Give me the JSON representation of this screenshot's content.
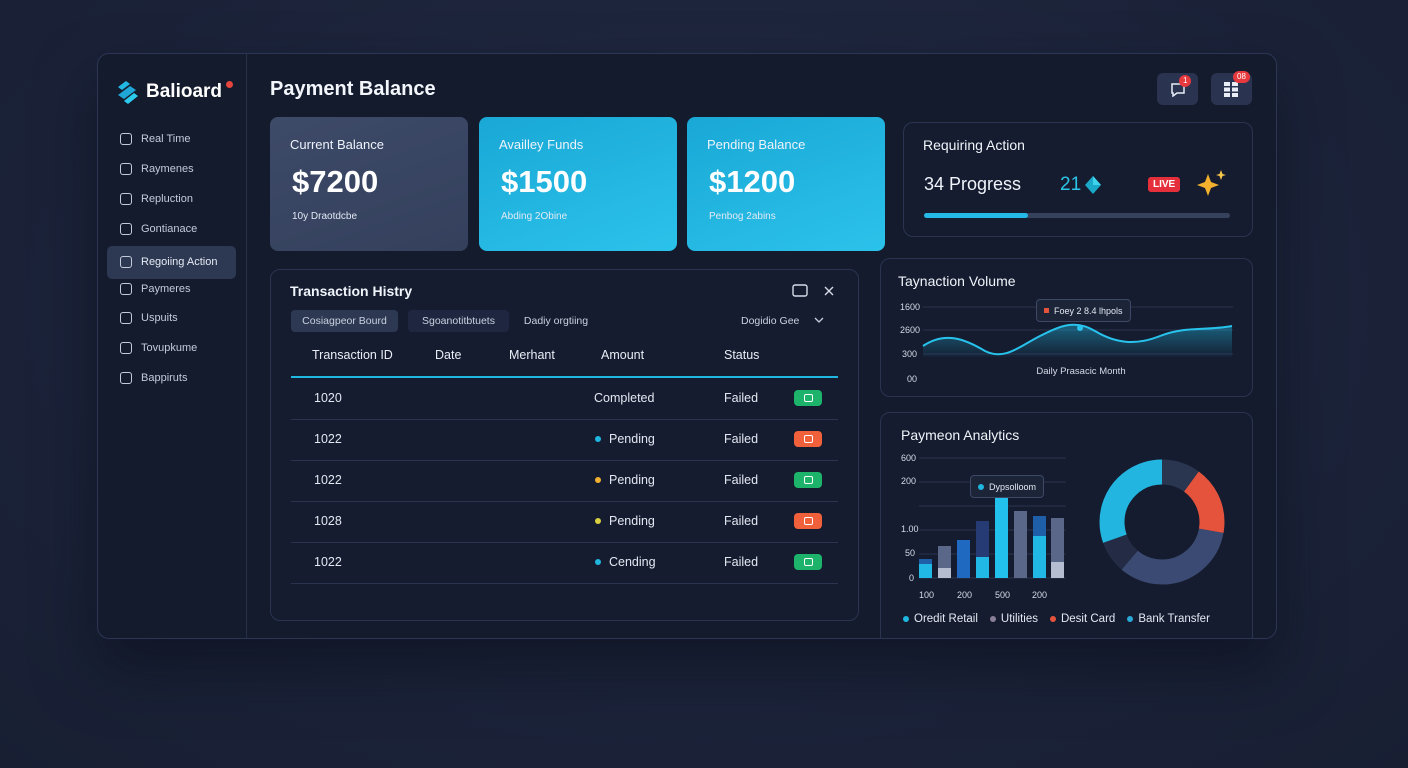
{
  "sidebar": {
    "logo": "Balioard",
    "items": [
      "Real Time",
      "Raymenes",
      "Repluction",
      "Gontianace",
      "Regoiing Action",
      "Paymeres",
      "Uspuits",
      "Tovupkume",
      "Bappiruts"
    ]
  },
  "header": {
    "title": "Payment Balance",
    "badges": [
      "1",
      "08"
    ]
  },
  "cards": [
    {
      "label": "Current Balance",
      "value": "$7200",
      "note": "10y Draotdcbe"
    },
    {
      "label": "Availley Funds",
      "value": "$1500",
      "note": "Abding 2Obine"
    },
    {
      "label": "Pending Balance",
      "value": "$1200",
      "note": "Penbog 2abins"
    }
  ],
  "requiring_action": {
    "title": "Requiring Action",
    "progress": "34 Progress",
    "count": "21",
    "live": "LIVE"
  },
  "transactions": {
    "title": "Transaction Histry",
    "tabs": [
      "Cosiagpeor Bourd",
      "Sgoanotitbtuets",
      "Dadiy orgtiing"
    ],
    "filter": "Dogidio Gee",
    "columns": [
      "Transaction ID",
      "Date",
      "Merhant",
      "Amount",
      "Status"
    ],
    "rows": [
      {
        "id": "1020",
        "state": "Completed",
        "status": "Failed",
        "badge": "#1db36b"
      },
      {
        "id": "1022",
        "state": "Pending",
        "dot": "#1fb6e0",
        "status": "Failed",
        "badge": "#f0603a"
      },
      {
        "id": "1022",
        "state": "Pending",
        "dot": "#f0b030",
        "status": "Failed",
        "badge": "#1db36b"
      },
      {
        "id": "1028",
        "state": "Pending",
        "dot": "#d8d040",
        "status": "Failed",
        "badge": "#f0603a"
      },
      {
        "id": "1022",
        "state": "Cending",
        "dot": "#1fb6e0",
        "status": "Failed",
        "badge": "#1db36b"
      }
    ]
  },
  "volume": {
    "title": "Taynaction Volume",
    "y_labels": [
      "1600",
      "2600",
      "300",
      "00"
    ],
    "tooltip": "Foey 2 8.4 lhpols",
    "caption": "Daily Prasacic Month"
  },
  "analytics": {
    "title": "Paymeon Analytics",
    "y_labels": [
      "600",
      "200",
      "1.00",
      "50",
      "0"
    ],
    "x_labels": [
      "100",
      "200",
      "500",
      "200"
    ],
    "tooltip": "Dypsolloom",
    "legend": [
      {
        "name": "Oredit Retail",
        "color": "#1fb6e0"
      },
      {
        "name": "Utilities",
        "color": "#8a7f9a"
      },
      {
        "name": "Desit Card",
        "color": "#e5533d"
      },
      {
        "name": "Bank Transfer",
        "color": "#2aa9d9"
      }
    ]
  }
}
